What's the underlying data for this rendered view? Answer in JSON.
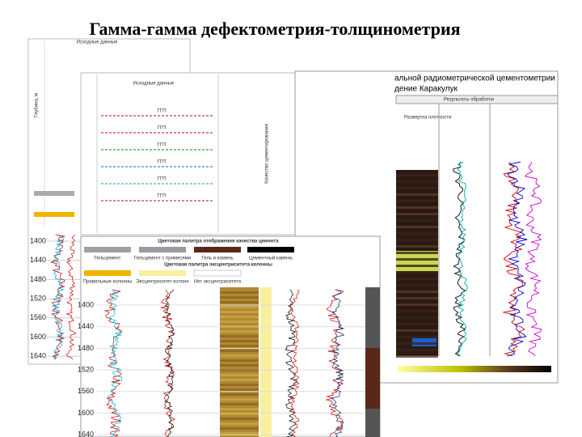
{
  "title": "Гамма-гамма дефектометрия-толщинометрия",
  "back_panel": {
    "header": "Исходные данные",
    "track_label": "Глубина, м",
    "depths": [
      1400,
      1440,
      1480,
      1520,
      1560,
      1600,
      1640
    ]
  },
  "middle_panel": {
    "header": "Исходные данные",
    "track_labels": [
      "ГГП",
      "ГГП",
      "ГГП",
      "ГГП",
      "ГГП",
      "ГГП"
    ],
    "side_label": "Качество цементирования"
  },
  "front_panel": {
    "palette_title": "Цветовая палитра отображения качества цемента",
    "palette_labels": [
      "Гельцемент",
      "Гельцемент с примесями",
      "Гель и камень",
      "Цементный камень"
    ],
    "eccentricity_title": "Цветовая палитра эксцентриситета колонны",
    "eccentricity_labels": [
      "Правильные колонны",
      "Эксцентриситет колонн",
      "Нет эксцентриситета"
    ],
    "depths": [
      1400,
      1440,
      1480,
      1520,
      1560,
      1600,
      1640
    ]
  },
  "right_panel": {
    "title_lines": [
      "альной радиометрической цементометрии",
      "дение Каракулук"
    ],
    "header": "Результаты обработки",
    "track_title": "Развертка плотности"
  }
}
